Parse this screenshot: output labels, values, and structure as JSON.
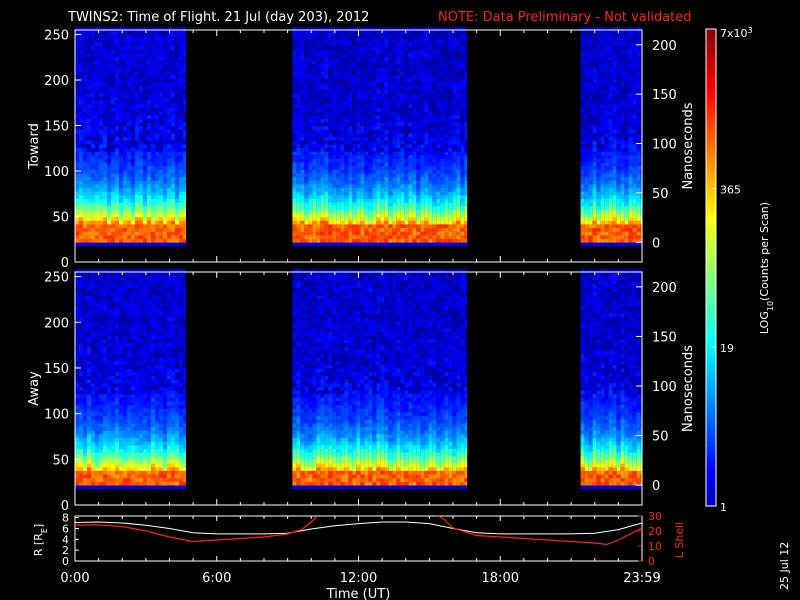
{
  "title": {
    "main": "TWINS2: Time of Flight. 21 Jul (day 203), 2012",
    "note": "NOTE: Data Preliminary - Not validated"
  },
  "date_stamp": "25 Jul 12",
  "colors": {
    "text": "#ffffff",
    "note": "#ff2020",
    "l_shell": "#ff2020",
    "radius": "#ffffff",
    "background": "#000000"
  },
  "chart_data": [
    {
      "type": "heatmap",
      "ylabel": "Toward",
      "ylabel_right": "Nanoseconds",
      "left_ticks": [
        "0",
        "50",
        "100",
        "150",
        "200",
        "250"
      ],
      "right_ticks": [
        "0",
        "50",
        "100",
        "150",
        "200"
      ],
      "ylim": [
        0,
        255
      ],
      "right_ylim": [
        -20,
        215
      ],
      "data_intervals_hours": [
        [
          0.0,
          4.7
        ],
        [
          9.2,
          16.6
        ],
        [
          21.4,
          24.0
        ]
      ],
      "peak_channel_range": [
        20,
        40
      ]
    },
    {
      "type": "heatmap",
      "ylabel": "Away",
      "ylabel_right": "Nanoseconds",
      "left_ticks": [
        "0",
        "50",
        "100",
        "150",
        "200",
        "250"
      ],
      "right_ticks": [
        "0",
        "50",
        "100",
        "150",
        "200"
      ],
      "ylim": [
        0,
        255
      ],
      "right_ylim": [
        -20,
        215
      ],
      "data_intervals_hours": [
        [
          0.0,
          4.7
        ],
        [
          9.2,
          16.6
        ],
        [
          21.4,
          24.0
        ]
      ],
      "peak_channel_range": [
        20,
        35
      ]
    },
    {
      "type": "line",
      "ylabel": "R [R",
      "ylabel_sub": "E",
      "ylabel_end": "]",
      "ylabel_right": "L Shell",
      "left_ticks": [
        "0",
        "2",
        "4",
        "6",
        "8"
      ],
      "right_ticks": [
        "0",
        "10",
        "20",
        "30"
      ],
      "ylim": [
        0,
        8.3
      ],
      "right_ylim": [
        0,
        30
      ],
      "series": [
        {
          "name": "R [RE]",
          "x": [
            0,
            1,
            2,
            3,
            4,
            5,
            6,
            7,
            8,
            9,
            10,
            11,
            12,
            13,
            14,
            15,
            16,
            17,
            18,
            19,
            20,
            21,
            22,
            23,
            24
          ],
          "values": [
            7.1,
            7.2,
            7.0,
            6.6,
            6.0,
            5.2,
            5.0,
            5.0,
            5.0,
            5.1,
            5.9,
            6.5,
            6.9,
            7.2,
            7.2,
            6.9,
            6.0,
            5.2,
            5.0,
            5.0,
            5.0,
            5.0,
            5.1,
            5.8,
            7.0
          ]
        },
        {
          "name": "L Shell",
          "x": [
            0,
            1,
            2,
            3,
            4,
            5,
            6,
            7,
            8,
            9,
            9.6,
            10,
            10.5,
            15.0,
            15.6,
            16,
            17,
            18,
            19,
            20,
            21,
            22,
            22.5,
            23,
            24
          ],
          "values": [
            24,
            24,
            23,
            20,
            16,
            13,
            14,
            15,
            16,
            18,
            21,
            26,
            34,
            34,
            28,
            22,
            17,
            16,
            15,
            14,
            13,
            12,
            11,
            14,
            22
          ]
        }
      ]
    },
    {
      "type": "colorbar",
      "label": "LOG",
      "label_sub": "10",
      "label_end": "(Counts per Scan)",
      "tick_labels": [
        "1",
        "19",
        "365",
        "7x10"
      ],
      "top_tick_exp": "3",
      "tick_positions_log10": [
        0,
        1.28,
        2.56,
        3.845
      ]
    }
  ],
  "x_axis": {
    "label": "Time (UT)",
    "tick_labels": [
      "0:00",
      "6:00",
      "12:00",
      "18:00",
      "23:59"
    ],
    "tick_hours": [
      0,
      6,
      12,
      18,
      24
    ]
  }
}
